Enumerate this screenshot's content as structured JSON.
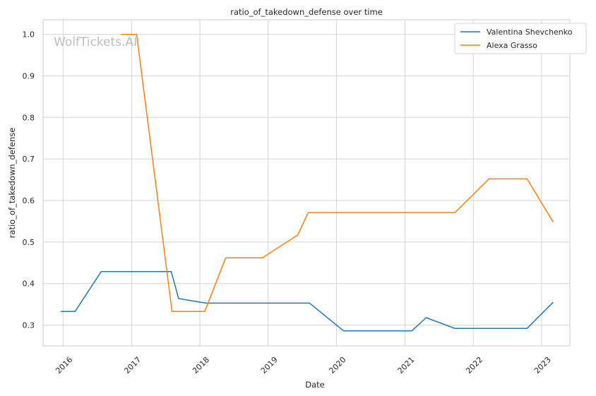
{
  "chart_data": {
    "type": "line",
    "title": "ratio_of_takedown_defense over time",
    "xlabel": "Date",
    "ylabel": "ratio_of_takedown_defense",
    "watermark": "WolfTickets.AI",
    "xlim": [
      "2015-09-16",
      "2023-06-01"
    ],
    "ylim": [
      0.25,
      1.035
    ],
    "x_ticks": [
      "2016",
      "2017",
      "2018",
      "2019",
      "2020",
      "2021",
      "2022",
      "2023"
    ],
    "y_ticks": [
      "0.3",
      "0.4",
      "0.5",
      "0.6",
      "0.7",
      "0.8",
      "0.9",
      "1.0"
    ],
    "grid": true,
    "legend_position": "top-right",
    "series": [
      {
        "name": "Valentina Shevchenko",
        "color": "#1f77b4",
        "x": [
          "2015-12-19",
          "2016-03-05",
          "2016-07-23",
          "2017-08-01",
          "2017-09-09",
          "2018-02-01",
          "2018-05-01",
          "2019-08-10",
          "2020-02-08",
          "2021-02-06",
          "2021-04-24",
          "2021-09-25",
          "2022-10-15",
          "2023-03-04"
        ],
        "y": [
          0.333,
          0.333,
          0.429,
          0.429,
          0.364,
          0.353,
          0.353,
          0.353,
          0.286,
          0.286,
          0.318,
          0.292,
          0.292,
          0.355
        ]
      },
      {
        "name": "Alexa Grasso",
        "color": "#ff7f0e",
        "x": [
          "2016-11-05",
          "2017-01-28",
          "2017-08-05",
          "2018-01-27",
          "2018-05-19",
          "2018-12-01",
          "2019-06-08",
          "2019-08-03",
          "2021-09-25",
          "2022-03-26",
          "2022-10-15",
          "2023-03-04"
        ],
        "y": [
          1.0,
          1.0,
          0.333,
          0.333,
          0.462,
          0.462,
          0.517,
          0.571,
          0.571,
          0.652,
          0.652,
          0.548
        ]
      }
    ]
  }
}
